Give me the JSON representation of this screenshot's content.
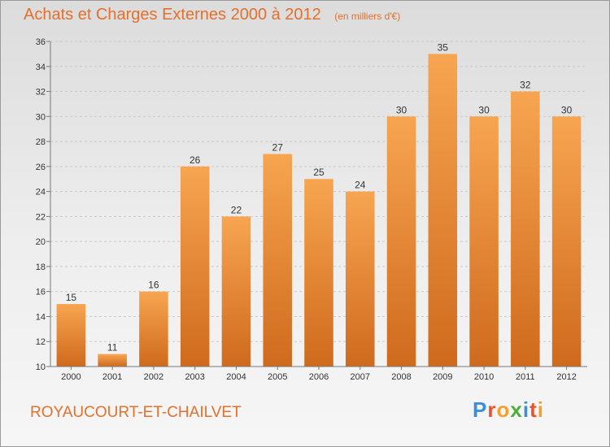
{
  "chart_data": {
    "type": "bar",
    "title": "Achats et Charges Externes 2000 à 2012",
    "unit": "(en milliers d'€)",
    "categories": [
      "2000",
      "2001",
      "2002",
      "2003",
      "2004",
      "2005",
      "2006",
      "2007",
      "2008",
      "2009",
      "2010",
      "2011",
      "2012"
    ],
    "values": [
      15,
      11,
      16,
      26,
      22,
      27,
      25,
      24,
      30,
      35,
      30,
      32,
      30
    ],
    "ylim": [
      10,
      36
    ],
    "yticks": [
      10,
      12,
      14,
      16,
      18,
      20,
      22,
      24,
      26,
      28,
      30,
      32,
      34,
      36
    ],
    "grid": true,
    "bar_color": "#f0953e"
  },
  "location": "ROYAUCOURT-ET-CHAILVET",
  "logo": {
    "letters": [
      {
        "ch": "P",
        "color": "#3a8fd8"
      },
      {
        "ch": "r",
        "color": "#e8522d"
      },
      {
        "ch": "o",
        "color": "#f2a12c"
      },
      {
        "ch": "x",
        "color": "#4cae3d"
      },
      {
        "ch": "i",
        "color": "#3a8fd8"
      },
      {
        "ch": "t",
        "color": "#e8522d"
      },
      {
        "ch": "i",
        "color": "#f2a12c"
      }
    ]
  }
}
